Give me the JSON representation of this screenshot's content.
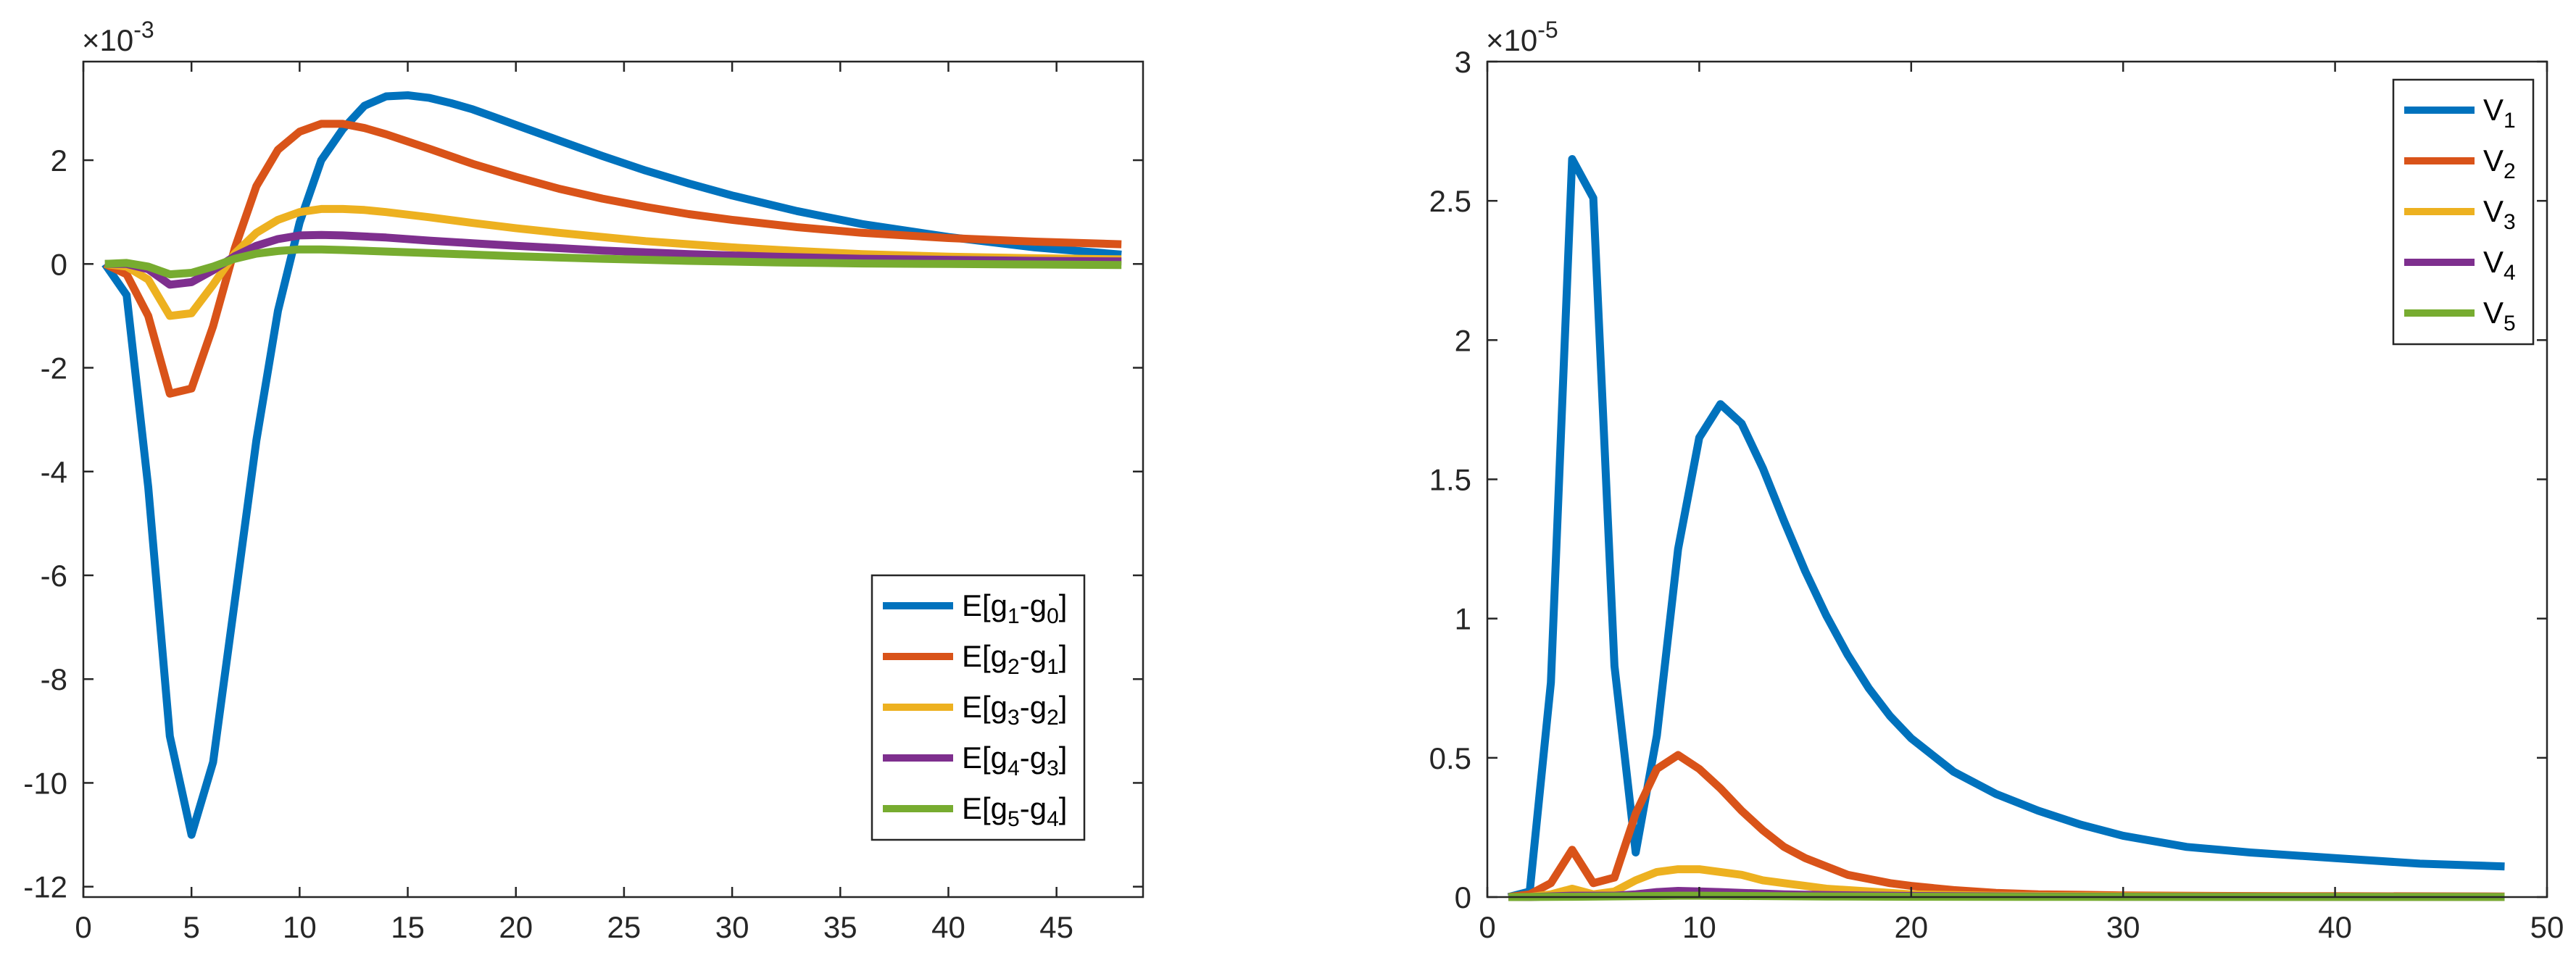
{
  "colors": {
    "blue": "#0072BD",
    "orange": "#D95319",
    "yellow": "#EDB120",
    "purple": "#7E2F8E",
    "green": "#77AC30"
  },
  "chart_data": [
    {
      "type": "line",
      "title": "",
      "xlabel": "",
      "ylabel": "",
      "y_exponent_label": "×10",
      "y_exponent_power": "-3",
      "xlim": [
        0,
        49
      ],
      "ylim": [
        -12.2,
        3.9
      ],
      "xticks": [
        0,
        5,
        10,
        15,
        20,
        25,
        30,
        35,
        40,
        45
      ],
      "xtick_labels": [
        "0",
        "5",
        "10",
        "15",
        "20",
        "25",
        "30",
        "35",
        "40",
        "45"
      ],
      "yticks": [
        -12,
        -10,
        -8,
        -6,
        -4,
        -2,
        0,
        2
      ],
      "ytick_labels": [
        "-12",
        "-10",
        "-8",
        "-6",
        "-4",
        "-2",
        "0",
        "2"
      ],
      "legend_position": "bottom-right",
      "series": [
        {
          "name": "E[g1-g0]",
          "label_parts": [
            "E[g",
            "1",
            "-g",
            "0",
            "]"
          ],
          "color": "#0072BD",
          "x": [
            1,
            2,
            3,
            4,
            5,
            6,
            7,
            8,
            9,
            10,
            11,
            12,
            13,
            14,
            15,
            16,
            17,
            18,
            19,
            20,
            22,
            24,
            26,
            28,
            30,
            33,
            36,
            40,
            44,
            48
          ],
          "y": [
            0,
            -0.6,
            -4.3,
            -9.1,
            -11.0,
            -9.6,
            -6.5,
            -3.4,
            -0.9,
            0.8,
            2.0,
            2.6,
            3.05,
            3.23,
            3.25,
            3.2,
            3.1,
            2.98,
            2.83,
            2.68,
            2.38,
            2.08,
            1.8,
            1.55,
            1.32,
            1.02,
            0.77,
            0.52,
            0.32,
            0.18
          ]
        },
        {
          "name": "E[g2-g1]",
          "label_parts": [
            "E[g",
            "2",
            "-g",
            "1",
            "]"
          ],
          "color": "#D95319",
          "x": [
            1,
            2,
            3,
            4,
            5,
            6,
            7,
            8,
            9,
            10,
            11,
            12,
            13,
            14,
            15,
            16,
            18,
            20,
            22,
            24,
            26,
            28,
            30,
            33,
            36,
            40,
            44,
            48
          ],
          "y": [
            0,
            -0.2,
            -1.0,
            -2.5,
            -2.4,
            -1.2,
            0.3,
            1.5,
            2.2,
            2.55,
            2.7,
            2.7,
            2.62,
            2.5,
            2.36,
            2.22,
            1.93,
            1.68,
            1.45,
            1.26,
            1.1,
            0.96,
            0.85,
            0.71,
            0.6,
            0.5,
            0.43,
            0.38
          ]
        },
        {
          "name": "E[g3-g2]",
          "label_parts": [
            "E[g",
            "3",
            "-g",
            "2",
            "]"
          ],
          "color": "#EDB120",
          "x": [
            1,
            2,
            3,
            4,
            5,
            6,
            7,
            8,
            9,
            10,
            11,
            12,
            13,
            14,
            16,
            18,
            20,
            22,
            24,
            26,
            28,
            30,
            33,
            36,
            40,
            44,
            48
          ],
          "y": [
            0,
            -0.05,
            -0.3,
            -1.0,
            -0.95,
            -0.4,
            0.2,
            0.6,
            0.85,
            1.0,
            1.06,
            1.06,
            1.04,
            1.0,
            0.9,
            0.79,
            0.69,
            0.6,
            0.52,
            0.44,
            0.38,
            0.32,
            0.25,
            0.19,
            0.14,
            0.11,
            0.09
          ]
        },
        {
          "name": "E[g4-g3]",
          "label_parts": [
            "E[g",
            "4",
            "-g",
            "3",
            "]"
          ],
          "color": "#7E2F8E",
          "x": [
            1,
            2,
            3,
            4,
            5,
            6,
            7,
            8,
            9,
            10,
            11,
            12,
            14,
            16,
            18,
            20,
            24,
            28,
            32,
            36,
            40,
            44,
            48
          ],
          "y": [
            0,
            0.0,
            -0.1,
            -0.4,
            -0.35,
            -0.12,
            0.15,
            0.35,
            0.48,
            0.55,
            0.56,
            0.55,
            0.51,
            0.45,
            0.4,
            0.35,
            0.26,
            0.19,
            0.14,
            0.1,
            0.08,
            0.06,
            0.05
          ]
        },
        {
          "name": "E[g5-g4]",
          "label_parts": [
            "E[g",
            "5",
            "-g",
            "4",
            "]"
          ],
          "color": "#77AC30",
          "x": [
            1,
            2,
            3,
            4,
            5,
            6,
            7,
            8,
            9,
            10,
            11,
            12,
            14,
            16,
            18,
            20,
            24,
            28,
            32,
            36,
            40,
            44,
            48
          ],
          "y": [
            0,
            0.02,
            -0.05,
            -0.2,
            -0.17,
            -0.05,
            0.1,
            0.2,
            0.25,
            0.28,
            0.28,
            0.27,
            0.24,
            0.21,
            0.18,
            0.15,
            0.1,
            0.06,
            0.03,
            0.01,
            0.0,
            -0.01,
            -0.02
          ]
        }
      ]
    },
    {
      "type": "line",
      "title": "",
      "xlabel": "",
      "ylabel": "",
      "y_exponent_label": "×10",
      "y_exponent_power": "-5",
      "xlim": [
        0,
        50
      ],
      "ylim": [
        0,
        3
      ],
      "xticks": [
        0,
        10,
        20,
        30,
        40,
        50
      ],
      "xtick_labels": [
        "0",
        "10",
        "20",
        "30",
        "40",
        "50"
      ],
      "yticks": [
        0,
        0.5,
        1,
        1.5,
        2,
        2.5,
        3
      ],
      "ytick_labels": [
        "0",
        "0.5",
        "1",
        "1.5",
        "2",
        "2.5",
        "3"
      ],
      "legend_position": "top-right",
      "series": [
        {
          "name": "V1",
          "label_parts": [
            "V",
            "1"
          ],
          "color": "#0072BD",
          "x": [
            1,
            2,
            3,
            4,
            5,
            6,
            7,
            8,
            9,
            10,
            11,
            12,
            13,
            14,
            15,
            16,
            17,
            18,
            19,
            20,
            22,
            24,
            26,
            28,
            30,
            33,
            36,
            40,
            44,
            48
          ],
          "y": [
            0,
            0.02,
            0.77,
            2.65,
            2.51,
            0.83,
            0.16,
            0.58,
            1.25,
            1.65,
            1.77,
            1.7,
            1.54,
            1.35,
            1.17,
            1.01,
            0.87,
            0.75,
            0.65,
            0.57,
            0.45,
            0.37,
            0.31,
            0.26,
            0.22,
            0.18,
            0.16,
            0.14,
            0.12,
            0.11
          ]
        },
        {
          "name": "V2",
          "label_parts": [
            "V",
            "2"
          ],
          "color": "#D95319",
          "x": [
            1,
            2,
            3,
            4,
            5,
            6,
            7,
            8,
            9,
            10,
            11,
            12,
            13,
            14,
            15,
            16,
            17,
            18,
            19,
            20,
            22,
            24,
            26,
            28,
            30,
            35,
            40,
            48
          ],
          "y": [
            0,
            0.01,
            0.05,
            0.17,
            0.05,
            0.07,
            0.3,
            0.46,
            0.51,
            0.46,
            0.39,
            0.31,
            0.24,
            0.18,
            0.14,
            0.11,
            0.08,
            0.065,
            0.05,
            0.04,
            0.025,
            0.015,
            0.01,
            0.008,
            0.006,
            0.004,
            0.003,
            0.002
          ]
        },
        {
          "name": "V3",
          "label_parts": [
            "V",
            "3"
          ],
          "color": "#EDB120",
          "x": [
            1,
            2,
            3,
            4,
            5,
            6,
            7,
            8,
            9,
            10,
            11,
            12,
            13,
            14,
            15,
            16,
            18,
            20,
            24,
            28,
            35,
            48
          ],
          "y": [
            0,
            0.0,
            0.01,
            0.03,
            0.01,
            0.02,
            0.06,
            0.09,
            0.1,
            0.1,
            0.09,
            0.08,
            0.06,
            0.05,
            0.04,
            0.03,
            0.02,
            0.01,
            0.005,
            0.003,
            0.002,
            0.001
          ]
        },
        {
          "name": "V4",
          "label_parts": [
            "V",
            "4"
          ],
          "color": "#7E2F8E",
          "x": [
            1,
            2,
            4,
            6,
            7,
            8,
            9,
            10,
            11,
            12,
            14,
            16,
            20,
            25,
            30,
            48
          ],
          "y": [
            0,
            0.0,
            0.005,
            0.005,
            0.01,
            0.018,
            0.022,
            0.02,
            0.018,
            0.015,
            0.01,
            0.007,
            0.004,
            0.002,
            0.001,
            0.0005
          ]
        },
        {
          "name": "V5",
          "label_parts": [
            "V",
            "5"
          ],
          "color": "#77AC30",
          "x": [
            1,
            4,
            8,
            9,
            10,
            12,
            16,
            20,
            30,
            48
          ],
          "y": [
            0,
            0.001,
            0.004,
            0.005,
            0.005,
            0.004,
            0.002,
            0.001,
            0.0005,
            0.0002
          ]
        }
      ]
    }
  ]
}
